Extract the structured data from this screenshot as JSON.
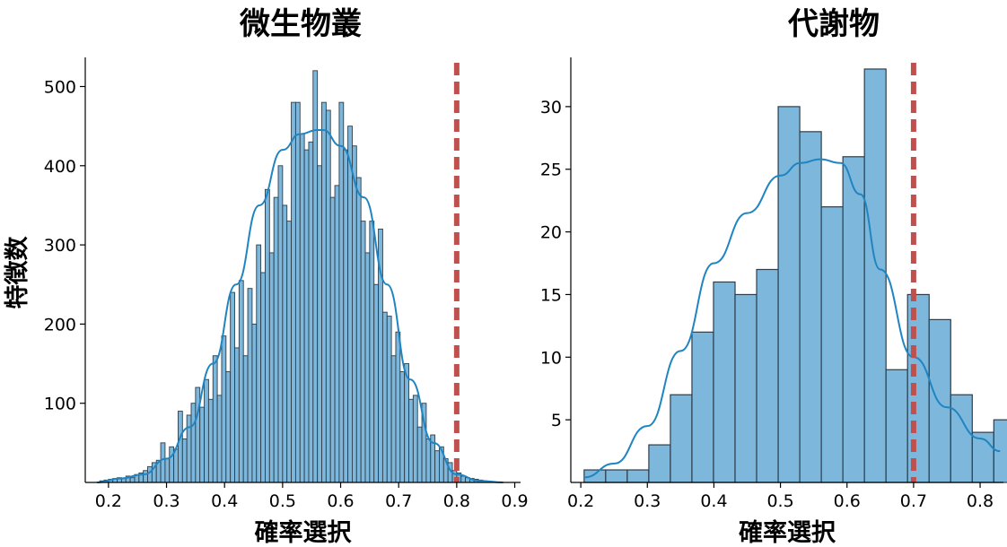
{
  "chart_data": [
    {
      "type": "histogram",
      "title": "微生物叢",
      "xlabel": "確率選択",
      "ylabel": "特徴数",
      "xlim": [
        0.16,
        0.91
      ],
      "ylim": [
        0,
        530
      ],
      "xticks": [
        "0.2",
        "0.3",
        "0.4",
        "0.5",
        "0.6",
        "0.7",
        "0.8",
        "0.9"
      ],
      "yticks": [
        "100",
        "200",
        "300",
        "400",
        "500"
      ],
      "bin_start": 0.185,
      "bin_width": 0.0075,
      "counts": [
        2,
        3,
        4,
        5,
        6,
        5,
        8,
        6,
        10,
        12,
        15,
        20,
        25,
        28,
        50,
        30,
        45,
        42,
        90,
        55,
        85,
        100,
        120,
        95,
        130,
        105,
        160,
        110,
        185,
        140,
        240,
        170,
        255,
        160,
        245,
        200,
        300,
        265,
        370,
        290,
        360,
        400,
        350,
        330,
        480,
        480,
        440,
        420,
        430,
        520,
        400,
        480,
        470,
        360,
        375,
        480,
        420,
        450,
        425,
        385,
        330,
        290,
        330,
        250,
        320,
        215,
        210,
        160,
        190,
        140,
        150,
        105,
        110,
        70,
        100,
        55,
        60,
        40,
        45,
        30,
        25,
        15,
        12,
        8,
        6,
        5,
        4,
        3
      ],
      "kde": {
        "x": [
          0.18,
          0.22,
          0.26,
          0.3,
          0.34,
          0.38,
          0.42,
          0.46,
          0.5,
          0.53,
          0.56,
          0.57,
          0.6,
          0.64,
          0.68,
          0.72,
          0.76,
          0.8,
          0.84,
          0.88
        ],
        "y": [
          0,
          5,
          10,
          30,
          70,
          150,
          250,
          350,
          420,
          440,
          445,
          445,
          425,
          360,
          250,
          130,
          50,
          10,
          2,
          0
        ]
      },
      "reference_line": 0.8
    },
    {
      "type": "histogram",
      "title": "代謝物",
      "xlabel": "確率選択",
      "ylabel": "",
      "xlim": [
        0.185,
        0.835
      ],
      "ylim": [
        0,
        33.5
      ],
      "xticks": [
        "0.2",
        "0.3",
        "0.4",
        "0.5",
        "0.6",
        "0.7",
        "0.8"
      ],
      "yticks": [
        "5",
        "10",
        "15",
        "20",
        "25",
        "30"
      ],
      "bin_start": 0.205,
      "bin_width": 0.0324,
      "counts": [
        1,
        1,
        1,
        3,
        7,
        12,
        16,
        15,
        17,
        30,
        28,
        22,
        26,
        33,
        9,
        15,
        13,
        7,
        4,
        5
      ],
      "kde": {
        "x": [
          0.205,
          0.25,
          0.3,
          0.35,
          0.4,
          0.45,
          0.5,
          0.53,
          0.56,
          0.59,
          0.62,
          0.65,
          0.7,
          0.75,
          0.8,
          0.83
        ],
        "y": [
          0.4,
          1.5,
          4.5,
          10.5,
          17.5,
          21.5,
          24.5,
          25.5,
          25.8,
          25.5,
          23,
          17,
          10,
          6,
          3.5,
          2.5
        ]
      },
      "reference_line": 0.7
    }
  ]
}
